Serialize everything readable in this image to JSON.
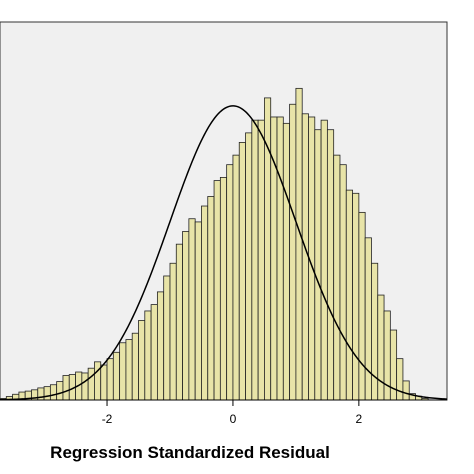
{
  "chart_data": {
    "type": "bar",
    "title": "",
    "xlabel": "Regression Standardized Residual",
    "ylabel": "",
    "xlim": [
      -3.7,
      3.4
    ],
    "ylim": [
      0,
      1.0
    ],
    "x_ticks": [
      -2,
      0,
      2
    ],
    "x_tick_labels": [
      "-2",
      "0",
      "2"
    ],
    "bin_width": 0.1,
    "bin_start": -3.7,
    "values": [
      0.005,
      0.011,
      0.018,
      0.025,
      0.028,
      0.032,
      0.038,
      0.042,
      0.048,
      0.058,
      0.077,
      0.08,
      0.088,
      0.085,
      0.1,
      0.12,
      0.11,
      0.13,
      0.15,
      0.18,
      0.19,
      0.21,
      0.25,
      0.28,
      0.3,
      0.34,
      0.39,
      0.43,
      0.49,
      0.53,
      0.57,
      0.56,
      0.61,
      0.64,
      0.69,
      0.7,
      0.74,
      0.77,
      0.81,
      0.84,
      0.88,
      0.88,
      0.95,
      0.89,
      0.89,
      0.87,
      0.93,
      0.98,
      0.9,
      0.89,
      0.85,
      0.88,
      0.85,
      0.77,
      0.74,
      0.66,
      0.65,
      0.59,
      0.51,
      0.43,
      0.33,
      0.28,
      0.22,
      0.13,
      0.06,
      0.02,
      0.012,
      0.005,
      0,
      0,
      0
    ],
    "normal_curve": {
      "mean": 0,
      "sd": 1,
      "peak": 0.925
    },
    "colors": {
      "bar_fill": "#e8e4a8",
      "bar_stroke": "#222222",
      "plot_bg": "#f0f0f0",
      "curve": "#000000"
    },
    "grid": false,
    "legend": "none"
  }
}
